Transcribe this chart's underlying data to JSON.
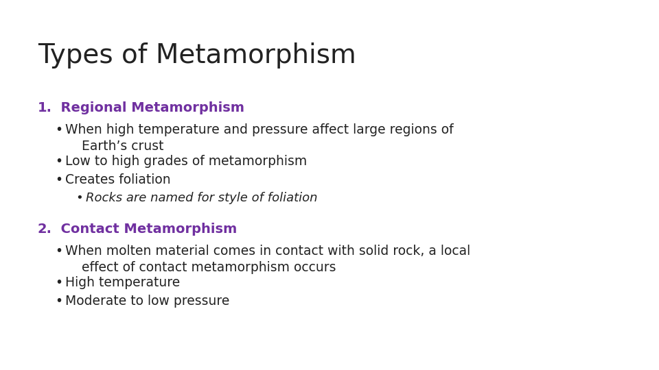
{
  "title": "Types of Metamorphism",
  "title_fontsize": 28,
  "title_color": "#222222",
  "background_color": "#ffffff",
  "purple_color": "#7030A0",
  "body_color": "#222222",
  "heading1_num": "1.",
  "heading1_text": "  Regional Metamorphism",
  "heading2_num": "2.",
  "heading2_text": "  Contact Metamorphism",
  "heading_fontsize": 14,
  "body_fontsize": 13.5,
  "italic_fontsize": 13,
  "section1_bullets": [
    "When high temperature and pressure affect large regions of\n    Earth’s crust",
    "Low to high grades of metamorphism",
    "Creates foliation"
  ],
  "section1_sub_bullets": [
    "Rocks are named for style of foliation"
  ],
  "section2_bullets": [
    "When molten material comes in contact with solid rock, a local\n    effect of contact metamorphism occurs",
    "High temperature",
    "Moderate to low pressure"
  ]
}
